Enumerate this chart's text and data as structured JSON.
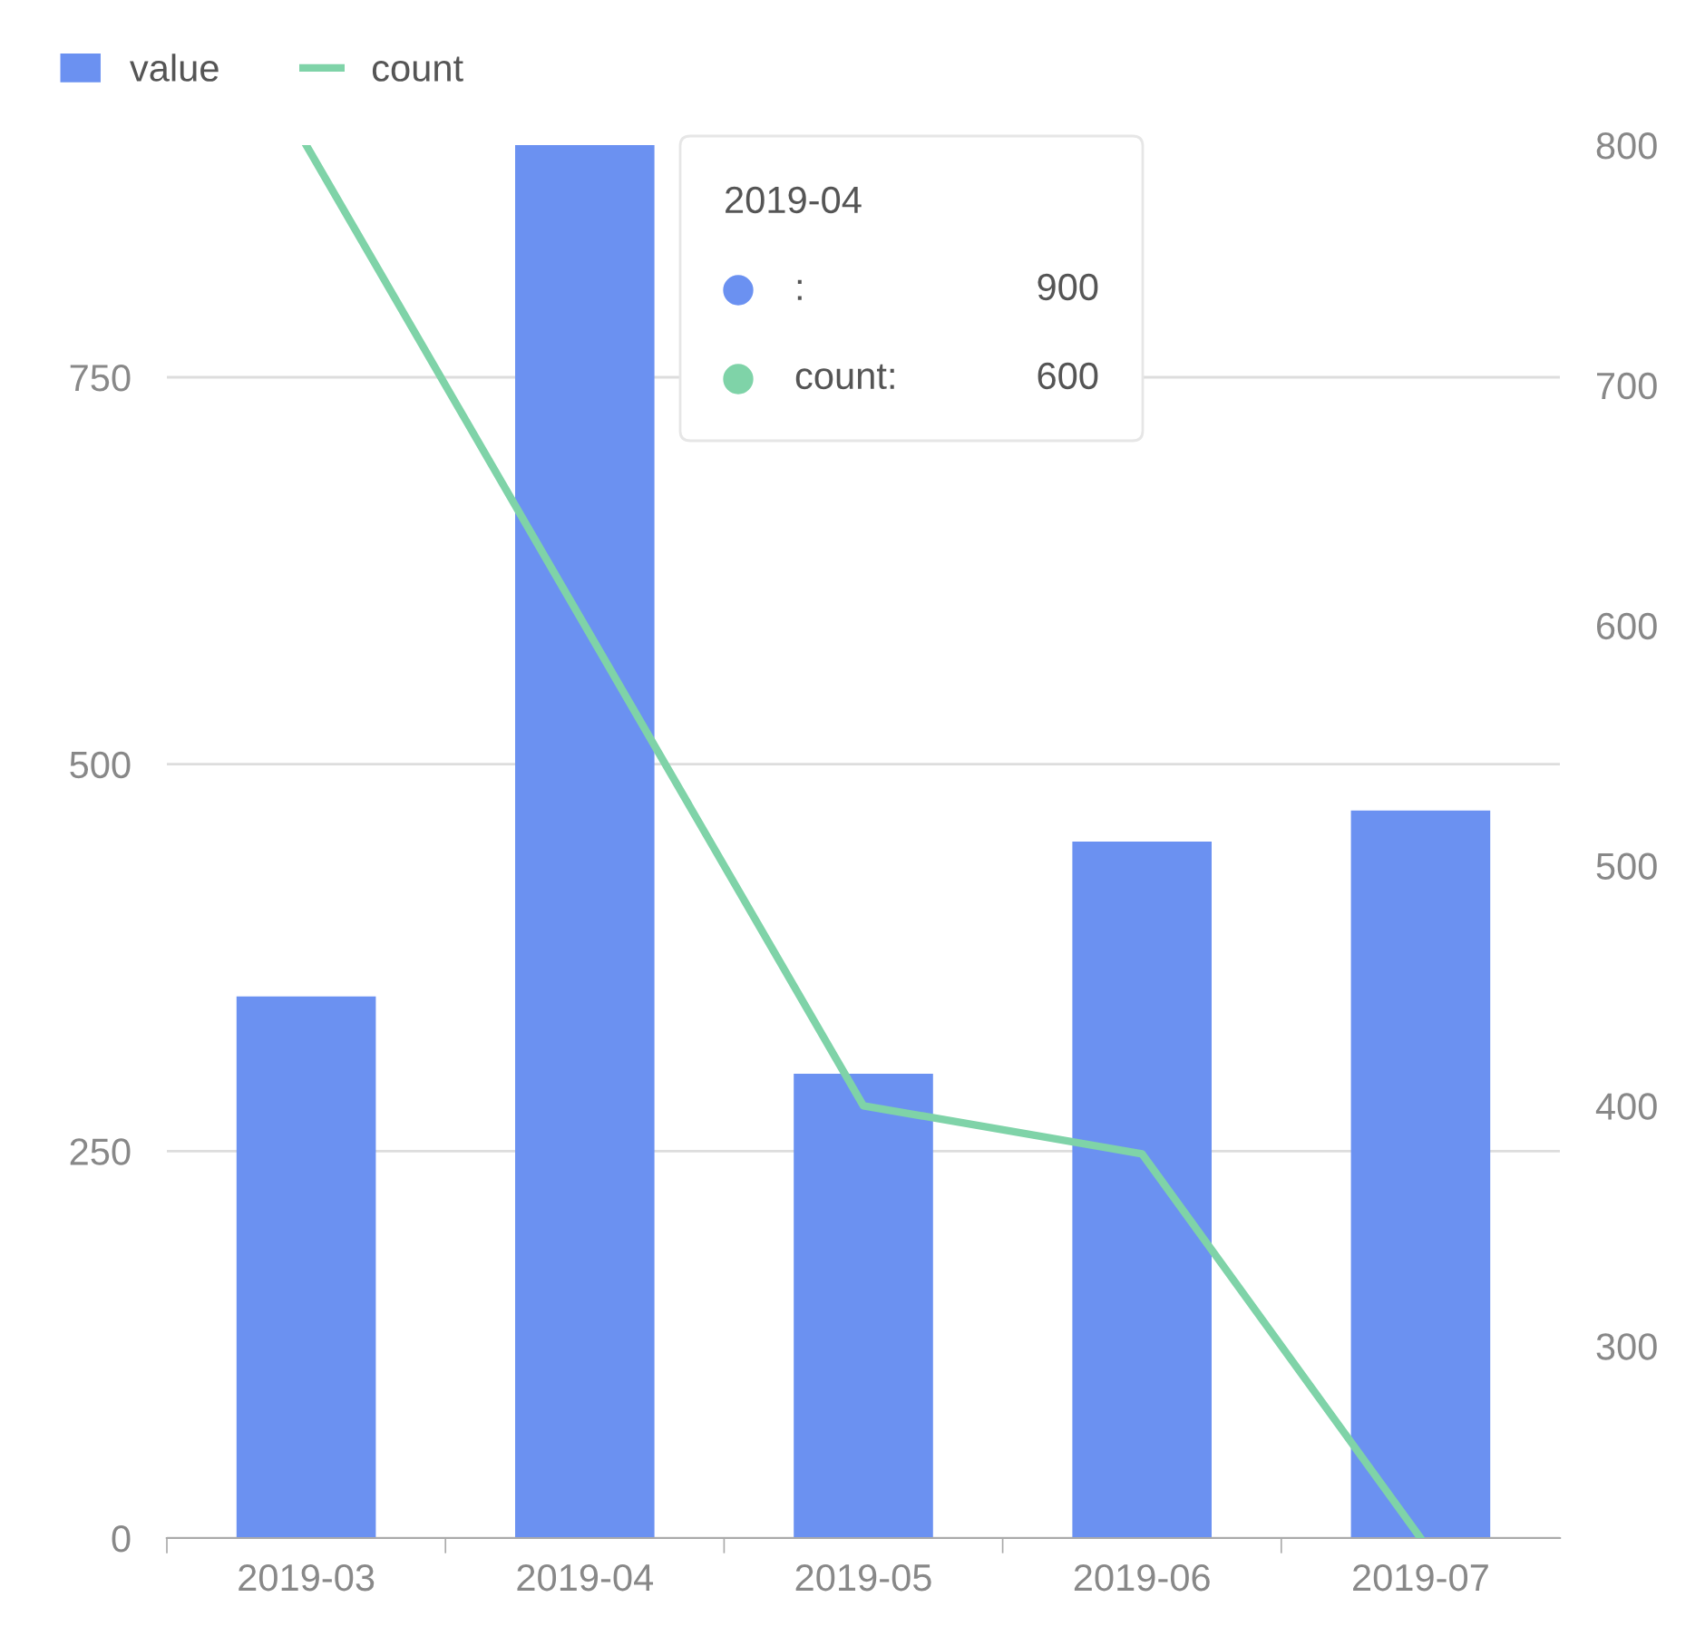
{
  "chart_data": {
    "type": "bar",
    "categories": [
      "2019-03",
      "2019-04",
      "2019-05",
      "2019-06",
      "2019-07"
    ],
    "series": [
      {
        "name": "value",
        "color": "#6b91f1",
        "values": [
          350,
          900,
          300,
          450,
          470
        ]
      },
      {
        "name": "count",
        "type": "line",
        "axis": "y2",
        "color": "#7fd3a8",
        "values": [
          800,
          600,
          400,
          380,
          220
        ]
      }
    ],
    "ylim": [
      0,
      900
    ],
    "yticks": [
      0,
      250,
      500,
      750
    ],
    "y2lim": [
      220,
      800
    ],
    "y2ticks": [
      300,
      400,
      500,
      600,
      700,
      800
    ],
    "grid": "y",
    "legend": "top left",
    "marker": "none",
    "line_style": "solid",
    "annotations": [
      "2019-04",
      ":",
      "900",
      "count:",
      "600"
    ]
  }
}
